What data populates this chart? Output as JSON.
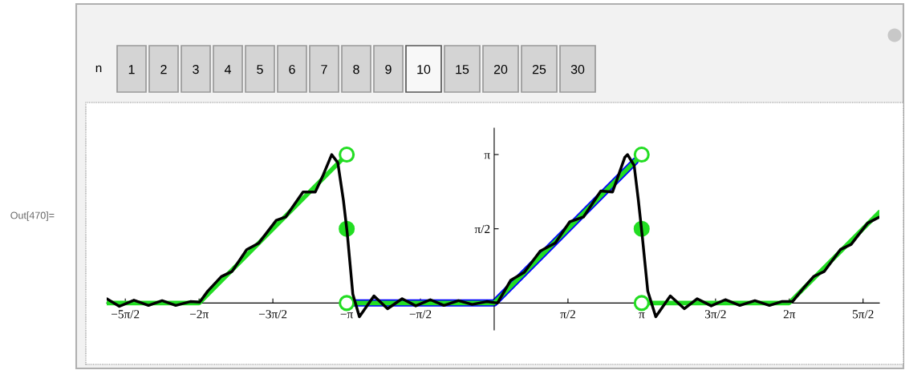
{
  "chart_data": {
    "type": "line",
    "annotations": [
      "Out[470]=",
      "n",
      "1",
      "2",
      "3",
      "4",
      "5",
      "6",
      "7",
      "8",
      "9",
      "10",
      "15",
      "20",
      "25",
      "30"
    ],
    "xlim": [
      -8.25,
      8.2
    ],
    "ylim": [
      -0.57,
      3.7
    ],
    "xticks": [
      {
        "value": -7.854,
        "label": "−5π/2"
      },
      {
        "value": -6.2832,
        "label": "−2π"
      },
      {
        "value": -4.7124,
        "label": "−3π/2"
      },
      {
        "value": -3.1416,
        "label": "−π"
      },
      {
        "value": -1.5708,
        "label": "−π/2"
      },
      {
        "value": 1.5708,
        "label": "π/2"
      },
      {
        "value": 3.1416,
        "label": "π"
      },
      {
        "value": 4.7124,
        "label": "3π/2"
      },
      {
        "value": 6.2832,
        "label": "2π"
      },
      {
        "value": 7.854,
        "label": "5π/2"
      }
    ],
    "yticks": [
      {
        "value": 1.5708,
        "label": "π/2"
      },
      {
        "value": 3.1416,
        "label": "π"
      }
    ],
    "series": [
      {
        "color": "#0000ff",
        "x": [
          -3.14,
          0,
          3.0
        ],
        "values": [
          0,
          0,
          3.0
        ]
      },
      {
        "color": "#22dd22",
        "x": [
          -8.25,
          -6.28,
          -3.14
        ],
        "values": [
          0,
          0,
          3.14
        ]
      },
      {
        "color": "#22dd22",
        "x": [
          -3.14,
          0,
          3.14
        ],
        "values": [
          0,
          0,
          3.14
        ]
      },
      {
        "color": "#22dd22",
        "x": [
          3.14,
          6.28,
          8.2
        ],
        "values": [
          0,
          0,
          1.92
        ]
      },
      {
        "color": "#000000",
        "x": [
          -8.25,
          -7.98,
          -7.67,
          -7.36,
          -7.07,
          -6.78,
          -6.47,
          -6.27,
          -6.1,
          -5.81,
          -5.58,
          -5.27,
          -5.01,
          -4.64,
          -4.44,
          -4.07,
          -3.81,
          -3.64,
          -3.46,
          -3.33,
          -3.21,
          -3.13,
          -3.01,
          -2.87,
          -2.56,
          -2.27,
          -1.96,
          -1.67,
          -1.36,
          -1.07,
          -0.76,
          -0.47,
          -0.16,
          0.07,
          0.35,
          0.64,
          0.98,
          1.3,
          1.61,
          1.9,
          2.27,
          2.52,
          2.78,
          2.84,
          2.98,
          3.07,
          3.15,
          3.27,
          3.44,
          3.75,
          4.05,
          4.32,
          4.62,
          4.92,
          5.23,
          5.55,
          5.86,
          6.12,
          6.35,
          6.58,
          6.8,
          7.03,
          7.37,
          7.6,
          7.95,
          8.2
        ],
        "values": [
          0.09,
          -0.07,
          0.06,
          -0.05,
          0.05,
          -0.05,
          0.03,
          0.02,
          0.25,
          0.56,
          0.67,
          1.13,
          1.27,
          1.75,
          1.82,
          2.35,
          2.35,
          2.71,
          3.14,
          2.97,
          2.17,
          1.49,
          0.19,
          -0.29,
          0.15,
          -0.12,
          0.09,
          -0.06,
          0.07,
          -0.05,
          0.05,
          -0.03,
          0.03,
          0.0,
          0.48,
          0.65,
          1.1,
          1.27,
          1.72,
          1.82,
          2.37,
          2.35,
          3.08,
          3.14,
          2.91,
          2.17,
          1.44,
          0.25,
          -0.29,
          0.15,
          -0.12,
          0.09,
          -0.06,
          0.07,
          -0.05,
          0.05,
          -0.05,
          0.03,
          0.03,
          0.31,
          0.56,
          0.67,
          1.13,
          1.24,
          1.69,
          1.82
        ]
      },
      {
        "type": "scatter",
        "color": "#22dd22",
        "marker": "circle",
        "x": [
          -3.14,
          -3.14,
          3.14,
          3.14
        ],
        "values": [
          3.14,
          0,
          3.14,
          0
        ]
      },
      {
        "type": "scatter",
        "color": "#22dd22",
        "marker": "circle",
        "x": [
          -3.14,
          3.14
        ],
        "values": [
          1.57,
          1.57
        ]
      }
    ]
  }
}
